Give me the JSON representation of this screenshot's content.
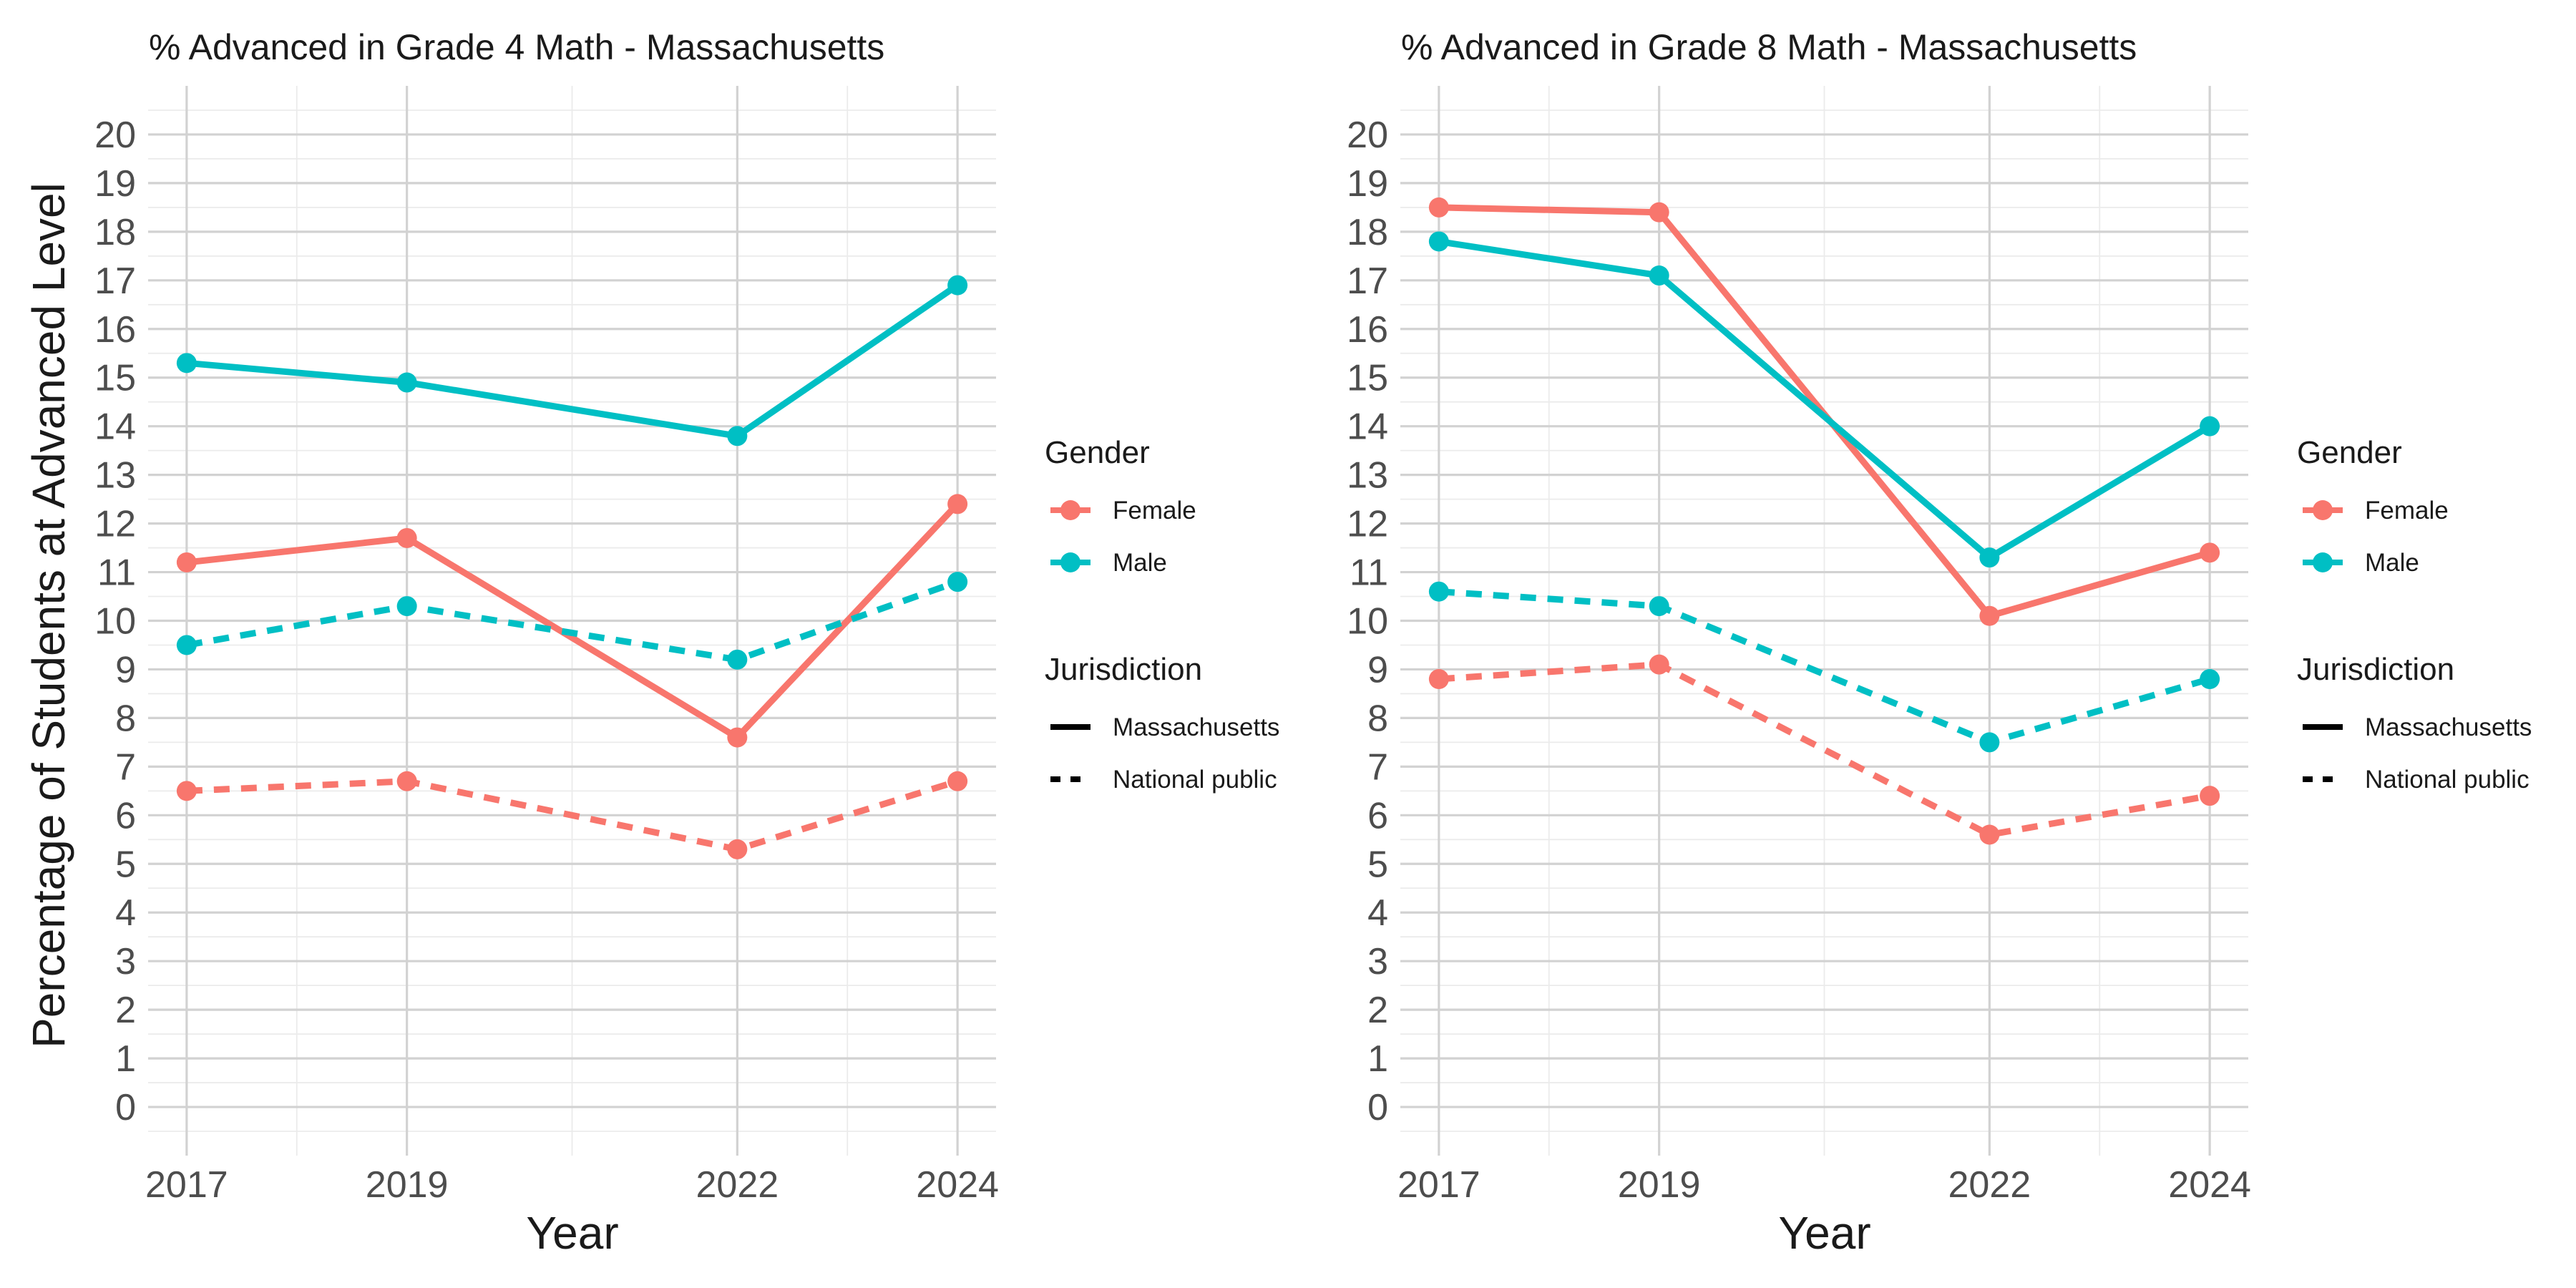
{
  "chart_data": [
    {
      "type": "line",
      "title": "% Advanced in Grade 4 Math - Massachusetts",
      "xlabel": "Year",
      "ylabel": "Percentage of Students at Advanced Level",
      "x": [
        2017,
        2019,
        2022,
        2024
      ],
      "xlim": [
        2016.65,
        2024.35
      ],
      "ylim": [
        -1,
        21
      ],
      "yticks": [
        0,
        1,
        2,
        3,
        4,
        5,
        6,
        7,
        8,
        9,
        10,
        11,
        12,
        13,
        14,
        15,
        16,
        17,
        18,
        19,
        20
      ],
      "grid": true,
      "series": [
        {
          "gender": "Male",
          "jurisdiction": "Massachusetts",
          "values": [
            15.3,
            14.9,
            13.8,
            16.9
          ]
        },
        {
          "gender": "Female",
          "jurisdiction": "Massachusetts",
          "values": [
            11.2,
            11.7,
            7.6,
            12.4
          ]
        },
        {
          "gender": "Male",
          "jurisdiction": "National public",
          "values": [
            9.5,
            10.3,
            9.2,
            10.8
          ]
        },
        {
          "gender": "Female",
          "jurisdiction": "National public",
          "values": [
            6.5,
            6.7,
            5.3,
            6.7
          ]
        }
      ]
    },
    {
      "type": "line",
      "title": "% Advanced in Grade 8 Math - Massachusetts",
      "xlabel": "Year",
      "ylabel": "",
      "x": [
        2017,
        2019,
        2022,
        2024
      ],
      "xlim": [
        2016.65,
        2024.35
      ],
      "ylim": [
        -1,
        21
      ],
      "yticks": [
        0,
        1,
        2,
        3,
        4,
        5,
        6,
        7,
        8,
        9,
        10,
        11,
        12,
        13,
        14,
        15,
        16,
        17,
        18,
        19,
        20
      ],
      "grid": true,
      "series": [
        {
          "gender": "Female",
          "jurisdiction": "Massachusetts",
          "values": [
            18.5,
            18.4,
            10.1,
            11.4
          ]
        },
        {
          "gender": "Male",
          "jurisdiction": "Massachusetts",
          "values": [
            17.8,
            17.1,
            11.3,
            14.0
          ]
        },
        {
          "gender": "Male",
          "jurisdiction": "National public",
          "values": [
            10.6,
            10.3,
            7.5,
            8.8
          ]
        },
        {
          "gender": "Female",
          "jurisdiction": "National public",
          "values": [
            8.8,
            9.1,
            5.6,
            6.4
          ]
        }
      ]
    }
  ],
  "legend": {
    "placement": "right",
    "gender_title": "Gender",
    "gender_items": [
      {
        "label": "Female",
        "color": "#F8766D"
      },
      {
        "label": "Male",
        "color": "#00BFC4"
      }
    ],
    "jurisdiction_title": "Jurisdiction",
    "jurisdiction_items": [
      {
        "label": "Massachusetts",
        "linetype": "solid"
      },
      {
        "label": "National public",
        "linetype": "dashed"
      }
    ]
  },
  "colors": {
    "Female": "#F8766D",
    "Male": "#00BFC4"
  }
}
